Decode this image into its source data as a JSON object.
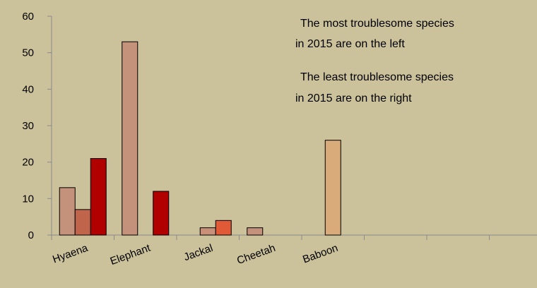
{
  "chart_data": {
    "type": "bar",
    "categories": [
      "Hyaena",
      "Elephant",
      "Jackal",
      "Cheetah",
      "Baboon",
      null,
      null,
      null
    ],
    "series": [
      {
        "values": [
          13,
          53,
          null,
          2,
          null,
          null,
          null,
          null
        ],
        "colors": [
          "#c4917a",
          "#c4917a",
          null,
          "#c4917a",
          null,
          null,
          null,
          null
        ]
      },
      {
        "values": [
          7,
          null,
          2,
          null,
          26,
          null,
          null,
          null
        ],
        "colors": [
          "#c0654c",
          null,
          "#c99079",
          null,
          "#d9ab7b",
          null,
          null,
          null
        ]
      },
      {
        "values": [
          21,
          12,
          4,
          null,
          null,
          null,
          null,
          null
        ],
        "colors": [
          "#b00000",
          "#b00000",
          "#e05a38",
          null,
          null,
          null,
          null,
          null
        ]
      }
    ],
    "ylim": [
      0,
      60
    ],
    "yticks": [
      0,
      10,
      20,
      30,
      40,
      50,
      60
    ],
    "annotations": [
      [
        "The most troublesome species",
        " in 2015 are on the left"
      ],
      [
        "The least troublesome species",
        " in 2015 are on the right"
      ]
    ]
  }
}
